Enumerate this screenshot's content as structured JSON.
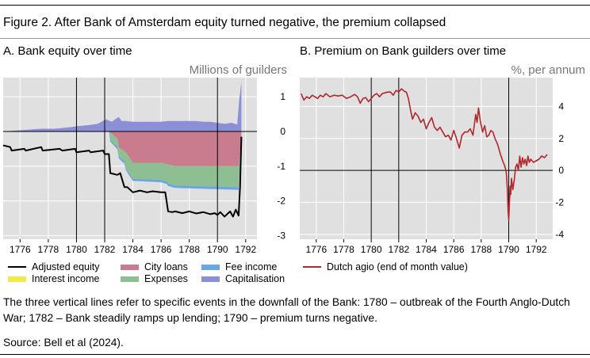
{
  "figure_title": "Figure 2. After Bank of Amsterdam equity turned negative, the premium collapsed",
  "notes": "The three vertical lines refer to specific events in the downfall of the Bank: 1780 – outbreak of the Fourth Anglo-Dutch War; 1782 – Bank steadily ramps up lending; 1790 – premium turns negative.",
  "source": "Source: Bell et al (2024).",
  "colors": {
    "panel_bg": "#e0e0e0",
    "grid": "#ffffff",
    "adjusted_equity": "#000000",
    "interest_income": "#f5e94a",
    "city_loans": "#c97c8e",
    "expenses": "#8dbf93",
    "fee_income": "#6aa6e0",
    "capitalisation": "#8c8fd6",
    "dutch_agio": "#b0282b"
  },
  "chart_data": [
    {
      "type": "area",
      "title": "A. Bank equity over time",
      "ylabel": "Millions of guilders",
      "xlim": [
        1774.8,
        1792.8
      ],
      "ylim": [
        -3.1,
        1.55
      ],
      "x_ticks": [
        1776,
        1778,
        1780,
        1782,
        1784,
        1786,
        1788,
        1790,
        1792
      ],
      "y_ticks": [
        1,
        0,
        -1,
        -2,
        -3
      ],
      "event_lines": [
        1780,
        1782,
        1790
      ],
      "legend": [
        {
          "key": "adjusted_equity",
          "label": "Adjusted equity",
          "kind": "line"
        },
        {
          "key": "city_loans",
          "label": "City loans",
          "kind": "area"
        },
        {
          "key": "fee_income",
          "label": "Fee income",
          "kind": "area"
        },
        {
          "key": "interest_income",
          "label": "Interest income",
          "kind": "area"
        },
        {
          "key": "expenses",
          "label": "Expenses",
          "kind": "area"
        },
        {
          "key": "capitalisation",
          "label": "Capitalisation",
          "kind": "area"
        }
      ],
      "series": [
        {
          "name": "Adjusted equity",
          "key": "adjusted_equity",
          "x": [
            1774.8,
            1775.3,
            1775.4,
            1776.3,
            1776.4,
            1777.5,
            1777.6,
            1778.8,
            1779.0,
            1779.9,
            1780.0,
            1780.9,
            1781.0,
            1781.9,
            1782.0,
            1782.3,
            1782.4,
            1782.6,
            1782.9,
            1783.1,
            1783.4,
            1783.6,
            1784.0,
            1784.5,
            1785.0,
            1785.4,
            1786.0,
            1786.3,
            1786.5,
            1786.8,
            1787.0,
            1787.5,
            1788.0,
            1788.5,
            1789.0,
            1789.5,
            1789.8,
            1790.0,
            1790.2,
            1790.5,
            1790.9,
            1791.1,
            1791.3,
            1791.5,
            1791.6,
            1791.7
          ],
          "y": [
            -0.4,
            -0.45,
            -0.55,
            -0.5,
            -0.55,
            -0.45,
            -0.55,
            -0.5,
            -0.55,
            -0.5,
            -0.6,
            -0.55,
            -0.6,
            -0.55,
            -0.65,
            -0.65,
            -1.2,
            -1.22,
            -1.25,
            -1.2,
            -1.6,
            -1.6,
            -1.75,
            -1.7,
            -1.75,
            -1.72,
            -1.75,
            -1.75,
            -2.3,
            -2.32,
            -2.3,
            -2.35,
            -2.3,
            -2.36,
            -2.32,
            -2.38,
            -2.35,
            -2.4,
            -2.32,
            -2.45,
            -2.3,
            -2.45,
            -2.25,
            -2.42,
            -1.6,
            -0.15
          ]
        },
        {
          "name": "Capitalisation",
          "key": "capitalisation",
          "x": [
            1774.8,
            1776.5,
            1777.5,
            1778.5,
            1779.5,
            1780.0,
            1780.8,
            1781.5,
            1782.1,
            1782.5,
            1783.0,
            1783.2,
            1783.5,
            1784.0,
            1784.5,
            1785.0,
            1785.5,
            1786.0,
            1786.5,
            1787.0,
            1787.5,
            1788.0,
            1788.5,
            1789.0,
            1789.5,
            1790.0,
            1790.5,
            1791.0,
            1791.4,
            1791.55,
            1791.7
          ],
          "y": [
            0,
            0.05,
            0.08,
            0.08,
            0.12,
            0.15,
            0.18,
            0.22,
            0.35,
            0.28,
            0.42,
            0.3,
            0.3,
            0.28,
            0.28,
            0.28,
            0.28,
            0.28,
            0.3,
            0.3,
            0.3,
            0.3,
            0.3,
            0.28,
            0.28,
            0.25,
            0.22,
            0.25,
            0.2,
            0.95,
            1.45
          ]
        },
        {
          "name": "City loans",
          "key": "city_loans",
          "x": [
            1774.8,
            1782.3,
            1782.9,
            1783.0,
            1783.5,
            1784.0,
            1785.0,
            1786.0,
            1787.0,
            1788.0,
            1789.0,
            1790.0,
            1791.0,
            1791.5,
            1791.7
          ],
          "y": [
            0,
            0,
            -0.2,
            -0.45,
            -0.6,
            -0.9,
            -0.9,
            -0.9,
            -1.0,
            -1.0,
            -1.0,
            -1.0,
            -1.0,
            -1.0,
            -0.2
          ]
        },
        {
          "name": "Expenses",
          "key": "expenses",
          "x": [
            1774.8,
            1782.3,
            1782.4,
            1783.4,
            1783.5,
            1786.4,
            1786.5,
            1791.5,
            1791.7
          ],
          "y": [
            0,
            0,
            -0.2,
            -0.3,
            -0.45,
            -0.5,
            -0.55,
            -0.6,
            -0.1
          ]
        },
        {
          "name": "Fee income",
          "key": "fee_income",
          "x": [
            1774.8,
            1782.3,
            1782.4,
            1791.5,
            1791.7
          ],
          "y": [
            0,
            0,
            -0.06,
            -0.08,
            -0.02
          ]
        },
        {
          "name": "Interest income",
          "key": "interest_income",
          "x": [
            1774.8,
            1791.7
          ],
          "y": [
            0,
            0
          ]
        }
      ]
    },
    {
      "type": "line",
      "title": "B. Premium on Bank guilders over time",
      "ylabel": "%, per annum",
      "xlim": [
        1774.8,
        1793.2
      ],
      "ylim": [
        -4.3,
        5.8
      ],
      "x_ticks": [
        1776,
        1778,
        1780,
        1782,
        1784,
        1786,
        1788,
        1790,
        1792
      ],
      "y_ticks": [
        4,
        2,
        0,
        -2,
        -4
      ],
      "event_lines": [
        1780,
        1782,
        1790
      ],
      "legend": [
        {
          "key": "dutch_agio",
          "label": "Dutch agio (end of month value)",
          "kind": "line"
        }
      ],
      "series": [
        {
          "name": "Dutch agio (end of month value)",
          "key": "dutch_agio",
          "x": [
            1774.9,
            1775.1,
            1775.3,
            1775.5,
            1775.7,
            1775.9,
            1776.1,
            1776.3,
            1776.5,
            1776.7,
            1777.0,
            1777.3,
            1777.6,
            1777.9,
            1778.2,
            1778.5,
            1778.8,
            1779.0,
            1779.2,
            1779.4,
            1779.6,
            1779.8,
            1780.0,
            1780.2,
            1780.4,
            1780.6,
            1780.8,
            1781.0,
            1781.2,
            1781.4,
            1781.6,
            1781.8,
            1782.0,
            1782.2,
            1782.4,
            1782.55,
            1782.7,
            1782.85,
            1783.0,
            1783.2,
            1783.4,
            1783.6,
            1783.8,
            1784.0,
            1784.2,
            1784.4,
            1784.6,
            1784.8,
            1785.0,
            1785.2,
            1785.4,
            1785.6,
            1785.8,
            1786.0,
            1786.2,
            1786.4,
            1786.6,
            1786.8,
            1787.0,
            1787.2,
            1787.4,
            1787.6,
            1787.7,
            1787.8,
            1787.95,
            1788.1,
            1788.25,
            1788.4,
            1788.55,
            1788.7,
            1788.85,
            1789.0,
            1789.2,
            1789.4,
            1789.6,
            1789.7,
            1789.8,
            1789.85,
            1789.9,
            1789.95,
            1790.0,
            1790.05,
            1790.1,
            1790.15,
            1790.2,
            1790.3,
            1790.4,
            1790.5,
            1790.6,
            1790.7,
            1790.8,
            1790.9,
            1791.0,
            1791.1,
            1791.2,
            1791.3,
            1791.4,
            1791.5,
            1791.6,
            1791.7,
            1791.8,
            1792.0,
            1792.2,
            1792.4,
            1792.6,
            1792.8
          ],
          "y": [
            4.8,
            4.4,
            4.6,
            4.5,
            4.7,
            4.6,
            4.5,
            4.7,
            4.6,
            4.8,
            4.6,
            4.7,
            4.65,
            4.7,
            4.5,
            4.6,
            4.75,
            4.6,
            4.2,
            4.5,
            4.55,
            4.3,
            4.5,
            4.7,
            4.8,
            4.6,
            4.8,
            4.85,
            4.9,
            4.9,
            4.7,
            5.0,
            4.9,
            5.1,
            4.95,
            4.9,
            4.5,
            3.8,
            3.2,
            3.6,
            3.4,
            3.0,
            3.2,
            2.6,
            3.0,
            3.3,
            2.7,
            2.5,
            2.7,
            2.4,
            2.1,
            2.2,
            1.9,
            2.5,
            2.0,
            1.4,
            2.2,
            2.4,
            2.4,
            2.6,
            2.2,
            3.5,
            3.0,
            3.9,
            3.0,
            2.4,
            2.8,
            2.1,
            2.2,
            2.5,
            2.4,
            2.0,
            1.6,
            1.0,
            0.5,
            0.3,
            0.0,
            -0.4,
            -1.2,
            -2.5,
            -3.1,
            -2.0,
            -1.0,
            -1.5,
            -0.5,
            -1.2,
            -0.6,
            0.2,
            0.4,
            0.0,
            0.9,
            0.2,
            0.8,
            0.4,
            0.7,
            0.3,
            0.9,
            0.5,
            0.7,
            0.6,
            0.5,
            0.6,
            0.7,
            0.9,
            0.8,
            1.0
          ]
        }
      ]
    }
  ]
}
